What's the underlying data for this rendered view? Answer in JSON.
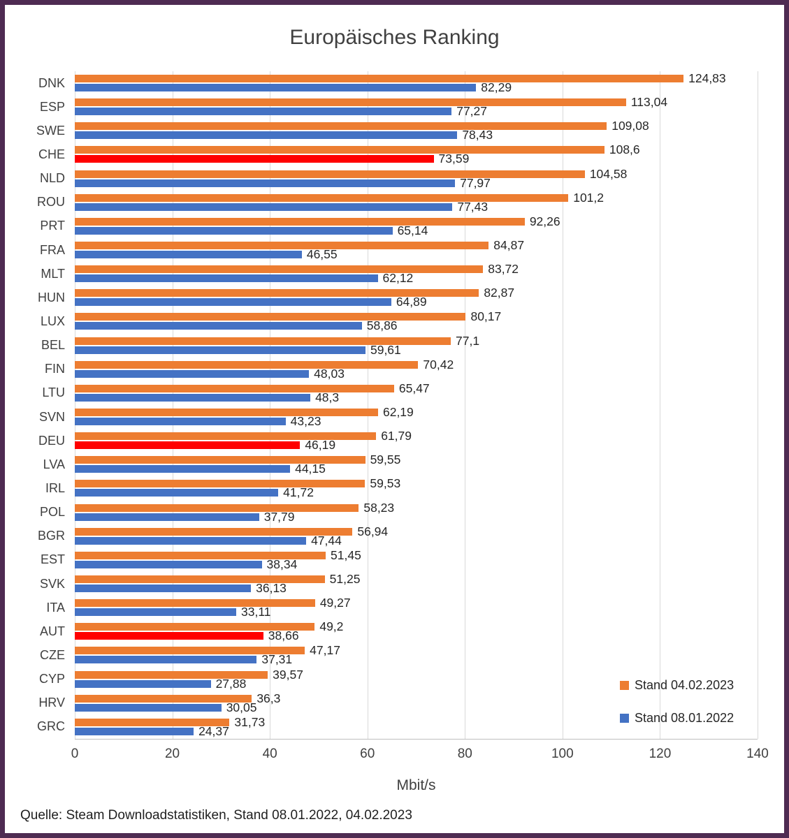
{
  "source_note": "Quelle: Steam Downloadstatistiken, Stand 08.01.2022, 04.02.2023",
  "frame": {
    "border_color": "#4e2b52"
  },
  "chart_data": {
    "type": "bar",
    "orientation": "horizontal",
    "title": "Europäisches Ranking",
    "xlabel": "Mbit/s",
    "xlim": [
      0,
      140
    ],
    "xticks": [
      0,
      20,
      40,
      60,
      80,
      100,
      120,
      140
    ],
    "grid": true,
    "legend_position": "bottom-right",
    "categories": [
      "DNK",
      "ESP",
      "SWE",
      "CHE",
      "NLD",
      "ROU",
      "PRT",
      "FRA",
      "MLT",
      "HUN",
      "LUX",
      "BEL",
      "FIN",
      "LTU",
      "SVN",
      "DEU",
      "LVA",
      "IRL",
      "POL",
      "BGR",
      "EST",
      "SVK",
      "ITA",
      "AUT",
      "CZE",
      "CYP",
      "HRV",
      "GRC"
    ],
    "series": [
      {
        "name": "Stand 04.02.2023",
        "color": "#ED7D31",
        "values": [
          124.83,
          113.04,
          109.08,
          108.6,
          104.58,
          101.2,
          92.26,
          84.87,
          83.72,
          82.87,
          80.17,
          77.1,
          70.42,
          65.47,
          62.19,
          61.79,
          59.55,
          59.53,
          58.23,
          56.94,
          51.45,
          51.25,
          49.27,
          49.2,
          47.17,
          39.57,
          36.3,
          31.73
        ],
        "labels": [
          "124,83",
          "113,04",
          "109,08",
          "108,6",
          "104,58",
          "101,2",
          "92,26",
          "84,87",
          "83,72",
          "82,87",
          "80,17",
          "77,1",
          "70,42",
          "65,47",
          "62,19",
          "61,79",
          "59,55",
          "59,53",
          "58,23",
          "56,94",
          "51,45",
          "51,25",
          "49,27",
          "49,2",
          "47,17",
          "39,57",
          "36,3",
          "31,73"
        ]
      },
      {
        "name": "Stand 08.01.2022",
        "color": "#4472C4",
        "values": [
          82.29,
          77.27,
          78.43,
          73.59,
          77.97,
          77.43,
          65.14,
          46.55,
          62.12,
          64.89,
          58.86,
          59.61,
          48.03,
          48.3,
          43.23,
          46.19,
          44.15,
          41.72,
          37.79,
          47.44,
          38.34,
          36.13,
          33.11,
          38.66,
          37.31,
          27.88,
          30.05,
          24.37
        ],
        "labels": [
          "82,29",
          "77,27",
          "78,43",
          "73,59",
          "77,97",
          "77,43",
          "65,14",
          "46,55",
          "62,12",
          "64,89",
          "58,86",
          "59,61",
          "48,03",
          "48,3",
          "43,23",
          "46,19",
          "44,15",
          "41,72",
          "37,79",
          "47,44",
          "38,34",
          "36,13",
          "33,11",
          "38,66",
          "37,31",
          "27,88",
          "30,05",
          "24,37"
        ]
      }
    ],
    "highlight": {
      "color": "#FF0000",
      "series_name": "Stand 08.01.2022",
      "categories": [
        "CHE",
        "DEU",
        "AUT"
      ]
    }
  }
}
